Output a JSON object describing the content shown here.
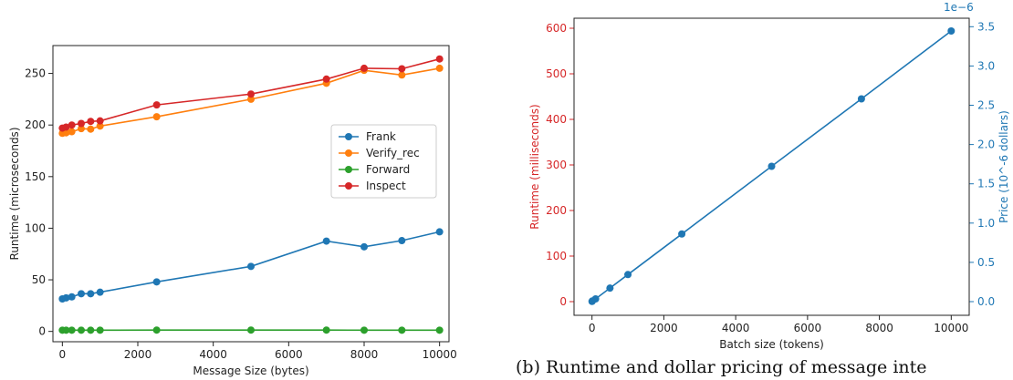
{
  "chart_data": [
    {
      "type": "line",
      "xlabel": "Message Size (bytes)",
      "ylabel": "Runtime (microseconds)",
      "xlim": [
        -250,
        10250
      ],
      "ylim": [
        -10,
        277
      ],
      "xticks": [
        0,
        2000,
        4000,
        6000,
        8000,
        10000
      ],
      "yticks": [
        0,
        50,
        100,
        150,
        200,
        250
      ],
      "grid": false,
      "legend_position": "center-right",
      "x": [
        0,
        100,
        250,
        500,
        750,
        1000,
        2500,
        5000,
        7000,
        8000,
        9000,
        10000
      ],
      "series": [
        {
          "name": "Frank",
          "color": "#1f77b4",
          "values": [
            31.5,
            32.5,
            33.5,
            36.5,
            36.5,
            38,
            48,
            63,
            87.5,
            82,
            88,
            96.5
          ]
        },
        {
          "name": "Verify_rec",
          "color": "#ff7f0e",
          "values": [
            192,
            192.5,
            193.5,
            196.5,
            196,
            199,
            208,
            225,
            240.5,
            253,
            248.5,
            255
          ]
        },
        {
          "name": "Forward",
          "color": "#2ca02c",
          "values": [
            1.2,
            1.2,
            1.2,
            1.2,
            1.2,
            1.2,
            1.3,
            1.3,
            1.3,
            1.2,
            1.2,
            1.2
          ]
        },
        {
          "name": "Inspect",
          "color": "#d62728",
          "values": [
            197,
            198,
            200,
            201.5,
            203.5,
            204,
            219.5,
            230,
            244.5,
            255,
            254.5,
            264
          ]
        }
      ]
    },
    {
      "type": "line",
      "xlabel": "Batch size (tokens)",
      "ylabel": "Runtime (milliseconds)",
      "ylabel_right": "Price (10^-6 dollars)",
      "right_axis_offset_label": "1e−6",
      "xlim": [
        -500,
        10500
      ],
      "ylim": [
        -30,
        622
      ],
      "ylim_right": [
        -0.174,
        3.608
      ],
      "xticks": [
        0,
        2000,
        4000,
        6000,
        8000,
        10000
      ],
      "yticks": [
        0,
        100,
        200,
        300,
        400,
        500,
        600
      ],
      "yticks_right": [
        0.0,
        0.5,
        1.0,
        1.5,
        2.0,
        2.5,
        3.0,
        3.5
      ],
      "ytick_labels_right": [
        "0.0",
        "0.5",
        "1.0",
        "1.5",
        "2.0",
        "2.5",
        "3.0",
        "3.5"
      ],
      "left_axis_color": "#d62728",
      "right_axis_color": "#1f77b4",
      "grid": false,
      "x": [
        1,
        10,
        100,
        500,
        1000,
        2500,
        5000,
        7500,
        10000
      ],
      "series": [
        {
          "color": "#1f77b4",
          "values": [
            0.4,
            1.5,
            6,
            29.7,
            59.4,
            148.5,
            297,
            445,
            594
          ]
        }
      ]
    }
  ],
  "caption": "(b) Runtime and dollar pricing of message inte"
}
